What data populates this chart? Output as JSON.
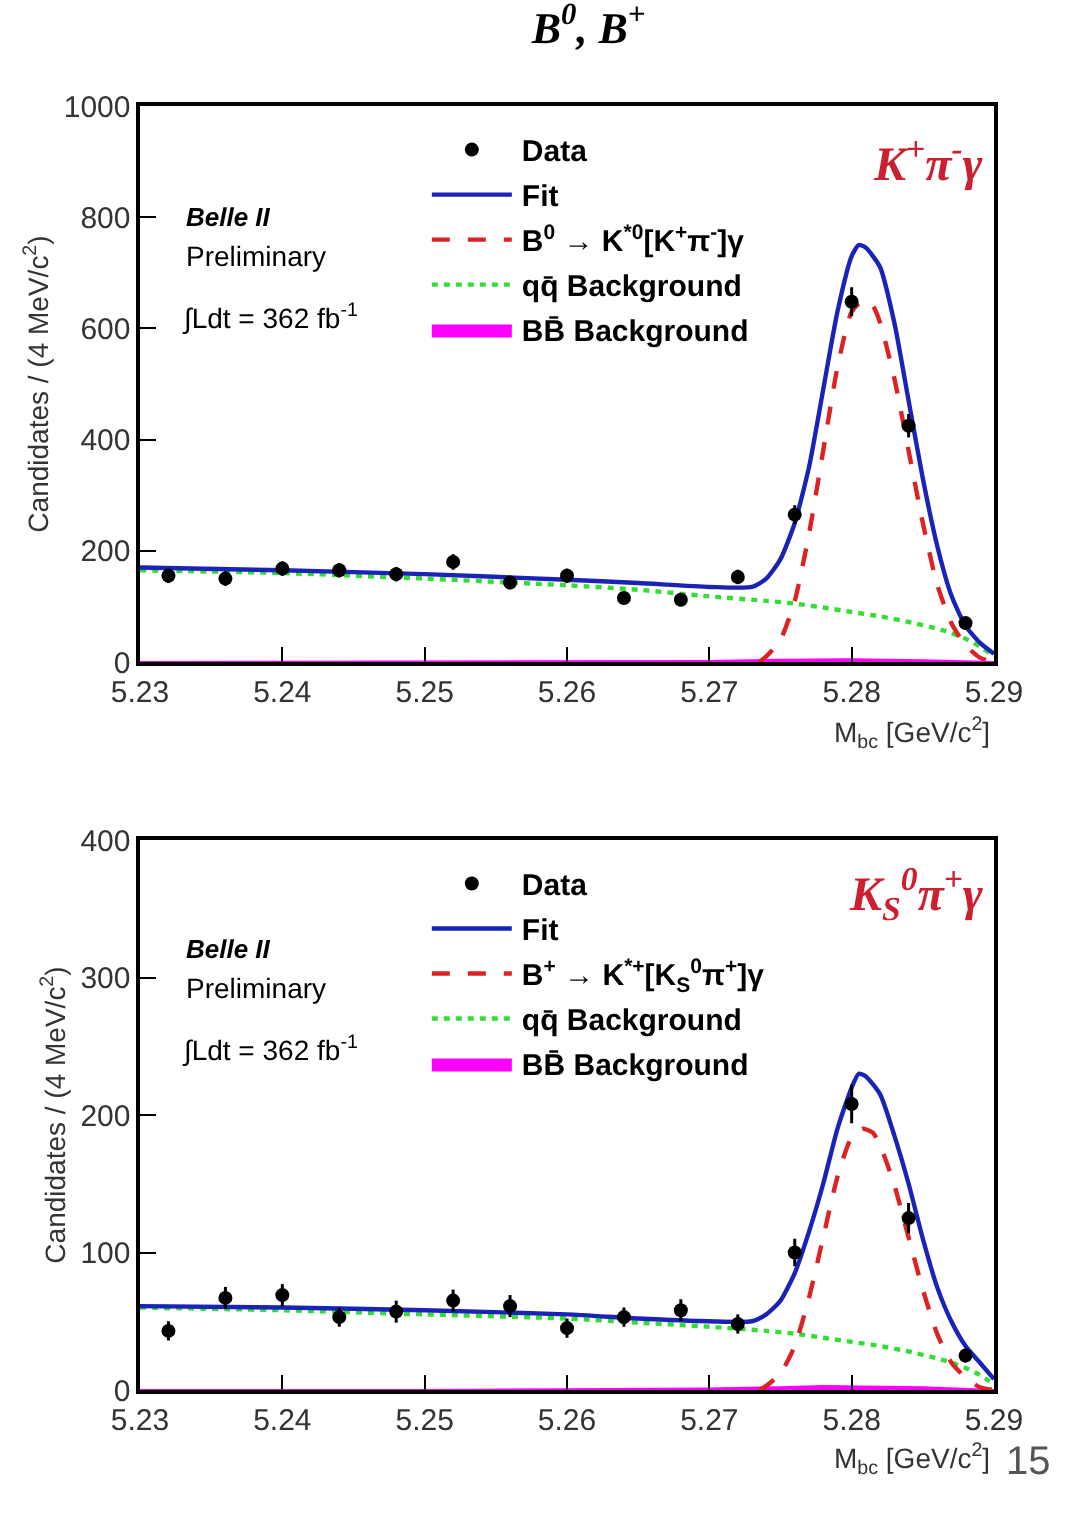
{
  "chart_data": [
    {
      "type": "scatter",
      "title": "B$^{0}$, B$^{+}$",
      "xlabel": "M$_{bc}$ [GeV/c$^{2}$]",
      "ylabel": "Candidates / (4 MeV/c$^{2}$)",
      "xlim": [
        5.23,
        5.29
      ],
      "xticks": [
        5.23,
        5.24,
        5.25,
        5.26,
        5.27,
        5.28,
        5.29
      ],
      "ylim": [
        0,
        1000
      ],
      "yticks": [
        0,
        200,
        400,
        600,
        800,
        1000
      ],
      "grid": false,
      "legend": "top",
      "annotations": [
        "Belle II",
        "Preliminary",
        "∫Ldt = 362 fb$^{-1}$",
        "K$^{+}$π$^{-}$γ"
      ],
      "series": [
        {
          "name": "BB̄ Background",
          "type": "area",
          "color": "#ff00ff",
          "x": [
            5.23,
            5.25,
            5.27,
            5.275,
            5.28,
            5.285,
            5.29
          ],
          "values": [
            0,
            1,
            2,
            4,
            5,
            3,
            0
          ]
        },
        {
          "name": "qq̄ Background",
          "type": "line",
          "line_style": "dotted",
          "color": "#33dd33",
          "x": [
            5.23,
            5.24,
            5.25,
            5.26,
            5.265,
            5.27,
            5.274,
            5.276,
            5.278,
            5.28,
            5.282,
            5.284,
            5.286,
            5.287,
            5.288,
            5.289,
            5.29
          ],
          "values": [
            165,
            160,
            150,
            138,
            130,
            118,
            110,
            105,
            98,
            90,
            82,
            72,
            60,
            52,
            42,
            28,
            10
          ]
        },
        {
          "name": "B$^{0}$ → K$^{*0}$[K$^{+}$π$^{-}$]γ",
          "type": "line",
          "line_style": "dashed",
          "color": "#dd2222",
          "x": [
            5.2735,
            5.274,
            5.275,
            5.276,
            5.277,
            5.278,
            5.279,
            5.28,
            5.2808,
            5.2815,
            5.282,
            5.283,
            5.284,
            5.285,
            5.286,
            5.287,
            5.288,
            5.289,
            5.29
          ],
          "values": [
            0,
            10,
            40,
            110,
            230,
            380,
            530,
            630,
            650,
            640,
            610,
            510,
            380,
            250,
            140,
            70,
            30,
            8,
            0
          ]
        },
        {
          "name": "Fit",
          "type": "line",
          "line_style": "solid",
          "color": "#1a23b8",
          "x": [
            5.23,
            5.24,
            5.25,
            5.26,
            5.265,
            5.27,
            5.273,
            5.274,
            5.275,
            5.276,
            5.277,
            5.278,
            5.279,
            5.28,
            5.2805,
            5.281,
            5.282,
            5.283,
            5.284,
            5.285,
            5.286,
            5.287,
            5.288,
            5.289,
            5.29
          ],
          "values": [
            170,
            165,
            158,
            148,
            142,
            135,
            135,
            150,
            185,
            250,
            350,
            490,
            630,
            730,
            750,
            745,
            710,
            610,
            470,
            330,
            210,
            120,
            65,
            35,
            15
          ]
        },
        {
          "name": "Data",
          "marker": "circle",
          "color": "#000000",
          "x": [
            5.232,
            5.236,
            5.24,
            5.244,
            5.248,
            5.252,
            5.256,
            5.26,
            5.264,
            5.268,
            5.272,
            5.276,
            5.28,
            5.284,
            5.288
          ],
          "values": [
            155,
            150,
            168,
            165,
            158,
            180,
            143,
            155,
            115,
            112,
            153,
            265,
            648,
            425,
            70
          ],
          "errors": [
            13,
            13,
            13,
            13,
            13,
            14,
            12,
            13,
            11,
            11,
            13,
            17,
            26,
            21,
            9
          ]
        }
      ]
    },
    {
      "type": "scatter",
      "xlabel": "M$_{bc}$ [GeV/c$^{2}$]",
      "ylabel": "Candidates / (4 MeV/c$^{2}$)",
      "xlim": [
        5.23,
        5.29
      ],
      "xticks": [
        5.23,
        5.24,
        5.25,
        5.26,
        5.27,
        5.28,
        5.29
      ],
      "ylim": [
        0,
        400
      ],
      "yticks": [
        0,
        100,
        200,
        300,
        400
      ],
      "grid": false,
      "legend": "top",
      "annotations": [
        "Belle II",
        "Preliminary",
        "∫Ldt = 362 fb$^{-1}$",
        "K$_{S}$$^{0}$π$^{+}$γ",
        "15"
      ],
      "series": [
        {
          "name": "BB̄ Background",
          "type": "area",
          "color": "#ff00ff",
          "x": [
            5.23,
            5.25,
            5.27,
            5.275,
            5.278,
            5.285,
            5.29
          ],
          "values": [
            0,
            0,
            1,
            2,
            3,
            2,
            0
          ]
        },
        {
          "name": "qq̄ Background",
          "type": "line",
          "line_style": "dotted",
          "color": "#33dd33",
          "x": [
            5.23,
            5.24,
            5.25,
            5.26,
            5.265,
            5.27,
            5.274,
            5.276,
            5.278,
            5.28,
            5.282,
            5.284,
            5.286,
            5.287,
            5.288,
            5.289,
            5.29
          ],
          "values": [
            60,
            58,
            55,
            52,
            49,
            46,
            43,
            41,
            38,
            35,
            32,
            28,
            23,
            20,
            16,
            11,
            4
          ]
        },
        {
          "name": "B$^{+}$ → K$^{*+}$[K$_{S}$$^{0}$π$^{+}$]γ",
          "type": "line",
          "line_style": "dashed",
          "color": "#dd2222",
          "x": [
            5.2735,
            5.274,
            5.275,
            5.276,
            5.277,
            5.278,
            5.279,
            5.28,
            5.2808,
            5.2815,
            5.282,
            5.283,
            5.284,
            5.285,
            5.286,
            5.287,
            5.288,
            5.289,
            5.29
          ],
          "values": [
            0,
            3,
            12,
            32,
            67,
            111,
            155,
            184,
            190,
            187,
            178,
            149,
            111,
            73,
            41,
            20,
            9,
            2,
            0
          ]
        },
        {
          "name": "Fit",
          "type": "line",
          "line_style": "solid",
          "color": "#1a23b8",
          "x": [
            5.23,
            5.24,
            5.25,
            5.26,
            5.265,
            5.27,
            5.273,
            5.274,
            5.275,
            5.276,
            5.277,
            5.278,
            5.279,
            5.28,
            5.2805,
            5.281,
            5.282,
            5.283,
            5.284,
            5.285,
            5.286,
            5.287,
            5.288,
            5.289,
            5.29
          ],
          "values": [
            61,
            60,
            58,
            55,
            52,
            50,
            50,
            55,
            65,
            85,
            115,
            150,
            190,
            220,
            230,
            228,
            215,
            185,
            150,
            110,
            75,
            50,
            32,
            20,
            8
          ]
        },
        {
          "name": "Data",
          "marker": "circle",
          "color": "#000000",
          "x": [
            5.232,
            5.236,
            5.24,
            5.244,
            5.248,
            5.252,
            5.256,
            5.26,
            5.264,
            5.268,
            5.272,
            5.276,
            5.28,
            5.284,
            5.288
          ],
          "values": [
            43,
            67,
            69,
            53,
            57,
            65,
            61,
            45,
            53,
            58,
            48,
            100,
            208,
            125,
            25
          ],
          "errors": [
            7,
            8,
            8,
            7,
            8,
            8,
            8,
            7,
            7,
            8,
            7,
            10,
            14,
            11,
            5
          ]
        }
      ]
    }
  ]
}
